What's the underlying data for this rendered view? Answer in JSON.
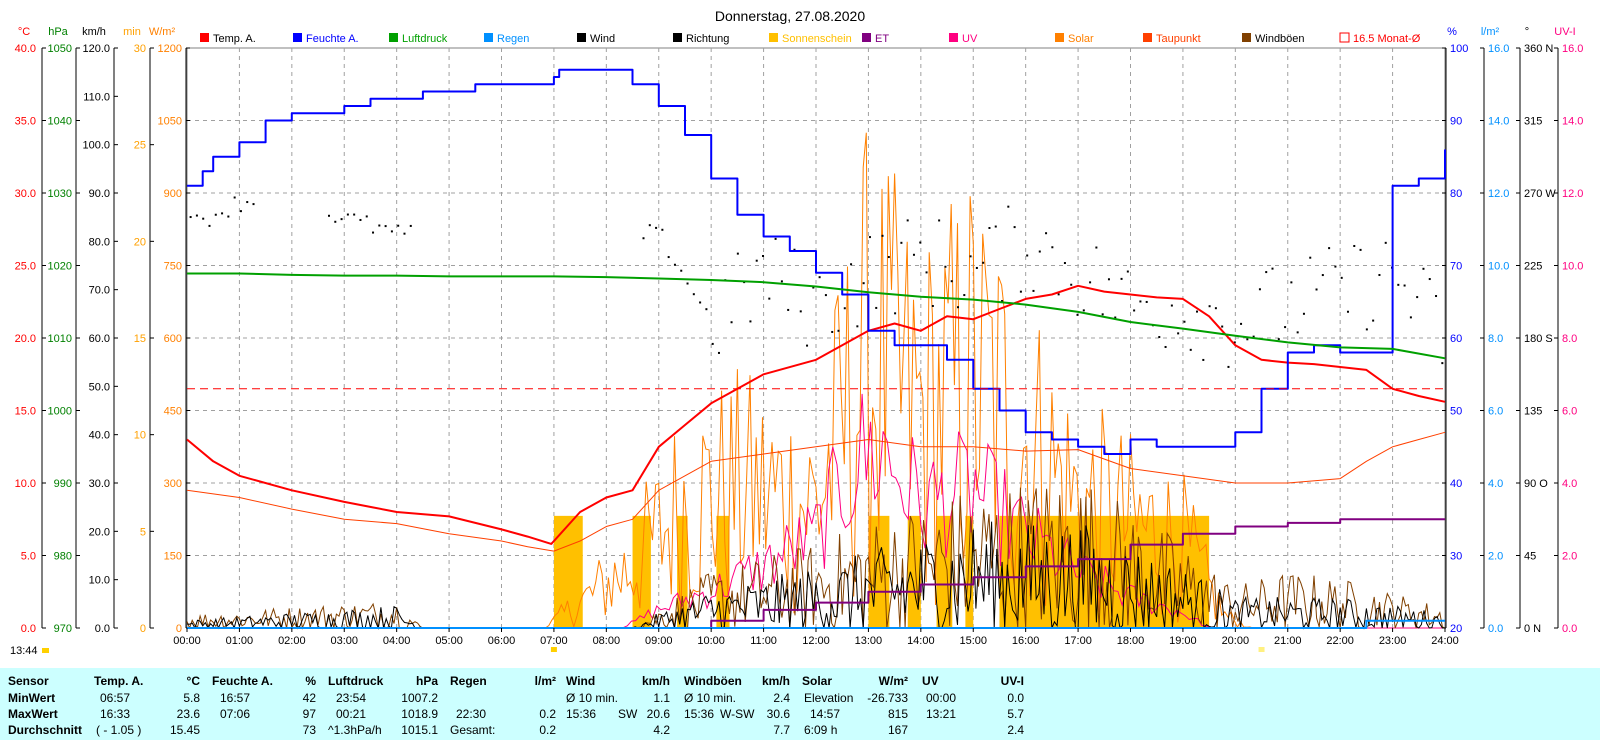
{
  "chart_data": {
    "type": "line",
    "title": "Donnerstag, 27.08.2020",
    "x_ticks": [
      "00:00",
      "01:00",
      "02:00",
      "03:00",
      "04:00",
      "05:00",
      "06:00",
      "07:00",
      "08:00",
      "09:00",
      "10:00",
      "11:00",
      "12:00",
      "13:00",
      "14:00",
      "15:00",
      "16:00",
      "17:00",
      "18:00",
      "19:00",
      "20:00",
      "21:00",
      "22:00",
      "23:00",
      "24:00"
    ],
    "time_marker": "13:44",
    "legend": [
      {
        "name": "Temp. A.",
        "color": "#ff0000"
      },
      {
        "name": "Feuchte A.",
        "color": "#0000ff"
      },
      {
        "name": "Luftdruck",
        "color": "#00a000"
      },
      {
        "name": "Regen",
        "color": "#0090ff"
      },
      {
        "name": "Wind",
        "color": "#000000"
      },
      {
        "name": "Richtung",
        "color": "#000000"
      },
      {
        "name": "Sonnenschein",
        "color": "#ffc000"
      },
      {
        "name": "ET",
        "color": "#800080"
      },
      {
        "name": "UV",
        "color": "#ff0080"
      },
      {
        "name": "Solar",
        "color": "#ff8000"
      },
      {
        "name": "Taupunkt",
        "color": "#ff4000"
      },
      {
        "name": "Windböen",
        "color": "#804000"
      },
      {
        "name": "16.5 Monat-Ø",
        "color": "#ff0000"
      }
    ],
    "axes": {
      "temp": {
        "unit": "°C",
        "ticks": [
          "40.0",
          "35.0",
          "30.0",
          "25.0",
          "20.0",
          "15.0",
          "10.0",
          "5.0",
          "0.0"
        ],
        "range": [
          0,
          40
        ],
        "color": "#ff0000"
      },
      "pressure": {
        "unit": "hPa",
        "ticks": [
          "1050",
          "1040",
          "1030",
          "1020",
          "1010",
          "1000",
          "990",
          "980",
          "970"
        ],
        "range": [
          970,
          1050
        ],
        "color": "#008000"
      },
      "wind": {
        "unit": "km/h",
        "ticks": [
          "120.0",
          "110.0",
          "100.0",
          "90.0",
          "80.0",
          "70.0",
          "60.0",
          "50.0",
          "40.0",
          "30.0",
          "20.0",
          "10.0",
          "0.0"
        ],
        "range": [
          0,
          120
        ],
        "color": "#000000"
      },
      "sunmin": {
        "unit": "min",
        "ticks": [
          "30",
          "25",
          "20",
          "15",
          "10",
          "5",
          "0"
        ],
        "range": [
          0,
          30
        ],
        "color": "#ffa000"
      },
      "solar": {
        "unit": "W/m²",
        "ticks": [
          "1200",
          "1050",
          "900",
          "750",
          "600",
          "450",
          "300",
          "150",
          "0"
        ],
        "range": [
          0,
          1200
        ],
        "color": "#ff8000"
      },
      "humidity": {
        "unit": "%",
        "ticks": [
          "100",
          "90",
          "80",
          "70",
          "60",
          "50",
          "40",
          "30",
          "20"
        ],
        "range": [
          20,
          100
        ],
        "color": "#0000ff"
      },
      "rain": {
        "unit": "l/m²",
        "ticks": [
          "16.0",
          "14.0",
          "12.0",
          "10.0",
          "8.0",
          "6.0",
          "4.0",
          "2.0",
          "0.0"
        ],
        "range": [
          0,
          16
        ],
        "color": "#0090ff"
      },
      "direction": {
        "unit": "°",
        "ticks": [
          "360 N",
          "315",
          "270 W",
          "225",
          "180 S",
          "135",
          "90 O",
          "45",
          "0 N"
        ],
        "range": [
          0,
          360
        ],
        "color": "#000000"
      },
      "uv": {
        "unit": "UV-I",
        "ticks": [
          "16.0",
          "14.0",
          "12.0",
          "10.0",
          "8.0",
          "6.0",
          "4.0",
          "2.0",
          "0.0"
        ],
        "range": [
          0,
          16
        ],
        "color": "#ff0080"
      }
    },
    "series": [
      {
        "name": "Temp. A.",
        "axis": "temp",
        "x": [
          0,
          0.5,
          1,
          2,
          3,
          4,
          5,
          6,
          6.5,
          6.95,
          7.5,
          8,
          8.5,
          9,
          9.5,
          10,
          11,
          12,
          13,
          13.5,
          14,
          14.5,
          15,
          15.5,
          16,
          16.5,
          17,
          17.5,
          18,
          18.5,
          19,
          19.5,
          20,
          20.5,
          21,
          21.5,
          22,
          22.5,
          23,
          23.5,
          24
        ],
        "y": [
          13,
          11.5,
          10.5,
          9.5,
          8.7,
          8,
          7.7,
          6.8,
          6.3,
          5.8,
          8,
          9,
          9.5,
          12.5,
          14,
          15.5,
          17.5,
          18.5,
          20.5,
          21,
          20.5,
          21.5,
          21.3,
          22,
          22.7,
          23,
          23.6,
          23.2,
          23,
          22.8,
          22.7,
          21.5,
          19.5,
          18.5,
          18.3,
          18.2,
          18,
          17.8,
          16.5,
          16,
          15.6
        ]
      },
      {
        "name": "Feuchte A.",
        "axis": "humidity",
        "x": [
          0,
          0.3,
          0.5,
          1,
          1.5,
          2,
          2.5,
          3,
          3.5,
          4,
          4.5,
          5,
          5.5,
          6,
          6.5,
          7,
          7.1,
          8,
          8.5,
          9,
          9.5,
          10,
          10.5,
          11,
          11.5,
          12,
          12.5,
          13,
          13.5,
          14,
          14.5,
          15,
          15.5,
          16,
          16.5,
          17,
          17.5,
          18,
          18.5,
          19,
          19.5,
          20,
          20.5,
          21,
          21.5,
          22,
          22.5,
          23,
          23.5,
          24
        ],
        "y": [
          81,
          83,
          85,
          87,
          90,
          91,
          91,
          92,
          93,
          93,
          94,
          94,
          95,
          95,
          95,
          96,
          97,
          97,
          95,
          92,
          88,
          82,
          77,
          74,
          72,
          69,
          66,
          61,
          59,
          59,
          57,
          53,
          50,
          47,
          46,
          45,
          44,
          46,
          45,
          45,
          45,
          47,
          53,
          58,
          59,
          58,
          58,
          81,
          82,
          86
        ]
      },
      {
        "name": "Luftdruck",
        "axis": "pressure",
        "x": [
          0,
          1,
          2,
          3,
          4,
          5,
          6,
          7,
          8,
          9,
          10,
          11,
          12,
          13,
          14,
          15,
          16,
          17,
          18,
          19,
          20,
          21,
          22,
          23,
          24
        ],
        "y": [
          1018.9,
          1018.9,
          1018.7,
          1018.6,
          1018.6,
          1018.5,
          1018.5,
          1018.5,
          1018.4,
          1018.2,
          1018,
          1017.7,
          1017.1,
          1016.3,
          1015.7,
          1015.3,
          1014.6,
          1013.6,
          1012.2,
          1011.3,
          1010.3,
          1009.4,
          1008.7,
          1008.5,
          1007.2
        ]
      },
      {
        "name": "Taupunkt",
        "axis": "temp",
        "x": [
          0,
          1,
          2,
          3,
          4,
          5,
          6,
          6.5,
          7,
          7.5,
          8,
          8.5,
          9,
          10,
          11,
          12,
          13,
          14,
          15,
          16,
          17,
          18,
          19,
          20,
          21,
          22,
          22.5,
          23,
          23.5,
          24
        ],
        "y": [
          9.5,
          9,
          8.2,
          7.5,
          7.2,
          6.5,
          6,
          5.6,
          5.3,
          6,
          7,
          7.5,
          9.5,
          11.5,
          12,
          12.5,
          13,
          12.5,
          12.5,
          12.2,
          12.3,
          11,
          10.5,
          10,
          10,
          10.3,
          11.5,
          12.5,
          13,
          13.5
        ]
      },
      {
        "name": "ET",
        "axis": "rain",
        "x": [
          0,
          8.5,
          10,
          11,
          12,
          13,
          14,
          15,
          16,
          17,
          18,
          19,
          20,
          21,
          22,
          23,
          24
        ],
        "y": [
          0,
          0,
          0.2,
          0.5,
          0.7,
          1.0,
          1.2,
          1.4,
          1.7,
          1.9,
          2.3,
          2.6,
          2.8,
          2.9,
          3.0,
          3.0,
          3.0
        ]
      },
      {
        "name": "Regen",
        "axis": "rain",
        "x": [
          0,
          22.4,
          22.5,
          24
        ],
        "y": [
          0,
          0,
          0.2,
          0.2
        ]
      },
      {
        "name": "16.5 Monat-Ø",
        "axis": "temp",
        "x": [
          0,
          24
        ],
        "y": [
          16.5,
          16.5
        ]
      }
    ],
    "summary": {
      "header": {
        "sensor": "Sensor",
        "temp": "Temp. A.",
        "temp_unit": "°C",
        "hum": "Feuchte A.",
        "hum_unit": "%",
        "press": "Luftdruck",
        "press_unit": "hPa",
        "rain": "Regen",
        "rain_unit": "l/m²",
        "wind": "Wind",
        "wind_unit": "km/h",
        "gust": "Windböen",
        "gust_unit": "km/h",
        "solar": "Solar",
        "solar_unit": "W/m²",
        "uv": "UV",
        "uv_unit": "UV-I"
      },
      "rows": [
        {
          "label": "MinWert",
          "temp_time": "06:57",
          "temp_val": "5.8",
          "hum_time": "16:57",
          "hum_val": "42",
          "press_time": "23:54",
          "press_val": "1007.2",
          "rain_time": "",
          "rain_val": "",
          "wind_time": "Ø 10 min.",
          "wind_dir": "",
          "wind_val": "1.1",
          "gust_time": "Ø 10 min.",
          "gust_dir": "",
          "gust_val": "2.4",
          "solar_time": "Elevation",
          "solar_val": "-26.733",
          "uv_time": "00:00",
          "uv_val": "0.0"
        },
        {
          "label": "MaxWert",
          "temp_time": "16:33",
          "temp_val": "23.6",
          "hum_time": "07:06",
          "hum_val": "97",
          "press_time": "00:21",
          "press_val": "1018.9",
          "rain_time": "22:30",
          "rain_val": "0.2",
          "wind_time": "15:36",
          "wind_dir": "SW",
          "wind_val": "20.6",
          "gust_time": "15:36",
          "gust_dir": "W-SW",
          "gust_val": "30.6",
          "solar_time": "14:57",
          "solar_val": "815",
          "uv_time": "13:21",
          "uv_val": "5.7"
        },
        {
          "label": "Durchschnitt",
          "temp_time": "( - 1.05 )",
          "temp_val": "15.45",
          "hum_time": "",
          "hum_val": "73",
          "press_time": "^1.3hPa/h",
          "press_val": "1015.1",
          "rain_time": "Gesamt:",
          "rain_val": "0.2",
          "wind_time": "",
          "wind_dir": "",
          "wind_val": "4.2",
          "gust_time": "",
          "gust_dir": "",
          "gust_val": "7.7",
          "solar_time": "6:09 h",
          "solar_val": "167",
          "uv_time": "",
          "uv_val": "2.4"
        }
      ]
    }
  }
}
